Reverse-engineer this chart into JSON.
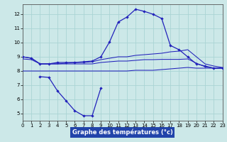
{
  "xlabel": "Graphe des températures (°c)",
  "background_color": "#cce8e8",
  "grid_color": "#aad4d4",
  "line_color": "#2222bb",
  "xlim": [
    0,
    23
  ],
  "ylim": [
    4.5,
    12.7
  ],
  "xticks": [
    0,
    1,
    2,
    3,
    4,
    5,
    6,
    7,
    8,
    9,
    10,
    11,
    12,
    13,
    14,
    15,
    16,
    17,
    18,
    19,
    20,
    21,
    22,
    23
  ],
  "yticks": [
    5,
    6,
    7,
    8,
    9,
    10,
    11,
    12
  ],
  "curve_main_x": [
    0,
    1,
    2,
    3,
    4,
    5,
    6,
    7,
    8,
    9,
    10,
    11,
    12,
    13,
    14,
    15,
    16,
    17,
    18,
    19,
    20,
    21,
    22,
    23
  ],
  "curve_main_y": [
    9.0,
    8.9,
    8.5,
    8.5,
    8.6,
    8.6,
    8.6,
    8.65,
    8.7,
    9.0,
    10.05,
    11.45,
    11.8,
    12.35,
    12.2,
    12.0,
    11.7,
    9.8,
    9.5,
    9.0,
    8.5,
    8.35,
    8.2,
    8.2
  ],
  "curve_upper_x": [
    0,
    1,
    2,
    3,
    4,
    5,
    6,
    7,
    8,
    9,
    10,
    11,
    12,
    13,
    14,
    15,
    16,
    17,
    18,
    19,
    20,
    21,
    22,
    23
  ],
  "curve_upper_y": [
    9.0,
    8.9,
    8.5,
    8.5,
    8.5,
    8.55,
    8.6,
    8.6,
    8.65,
    8.8,
    8.9,
    9.0,
    9.0,
    9.1,
    9.15,
    9.2,
    9.25,
    9.35,
    9.4,
    9.5,
    9.0,
    8.5,
    8.35,
    8.25
  ],
  "curve_mid_x": [
    0,
    1,
    2,
    3,
    4,
    5,
    6,
    7,
    8,
    9,
    10,
    11,
    12,
    13,
    14,
    15,
    16,
    17,
    18,
    19,
    20,
    21,
    22,
    23
  ],
  "curve_mid_y": [
    8.85,
    8.8,
    8.5,
    8.5,
    8.5,
    8.5,
    8.5,
    8.5,
    8.5,
    8.6,
    8.65,
    8.7,
    8.7,
    8.75,
    8.8,
    8.8,
    8.82,
    8.82,
    8.82,
    8.85,
    8.55,
    8.3,
    8.2,
    8.2
  ],
  "curve_bot_x": [
    0,
    1,
    2,
    3,
    4,
    5,
    6,
    7,
    8,
    9,
    10,
    11,
    12,
    13,
    14,
    15,
    16,
    17,
    18,
    19,
    20,
    21,
    22,
    23
  ],
  "curve_bot_y": [
    8.0,
    8.0,
    8.0,
    8.0,
    8.0,
    8.0,
    8.0,
    8.0,
    8.0,
    8.0,
    8.0,
    8.0,
    8.0,
    8.05,
    8.05,
    8.05,
    8.1,
    8.15,
    8.2,
    8.25,
    8.2,
    8.2,
    8.2,
    8.2
  ],
  "curve_dip_x": [
    2,
    3,
    4,
    5,
    6,
    7,
    8,
    9
  ],
  "curve_dip_y": [
    7.6,
    7.55,
    6.6,
    5.9,
    5.2,
    4.85,
    4.85,
    6.8
  ],
  "xlabel_bg": "#2244aa",
  "xlabel_fg": "#ffffff"
}
